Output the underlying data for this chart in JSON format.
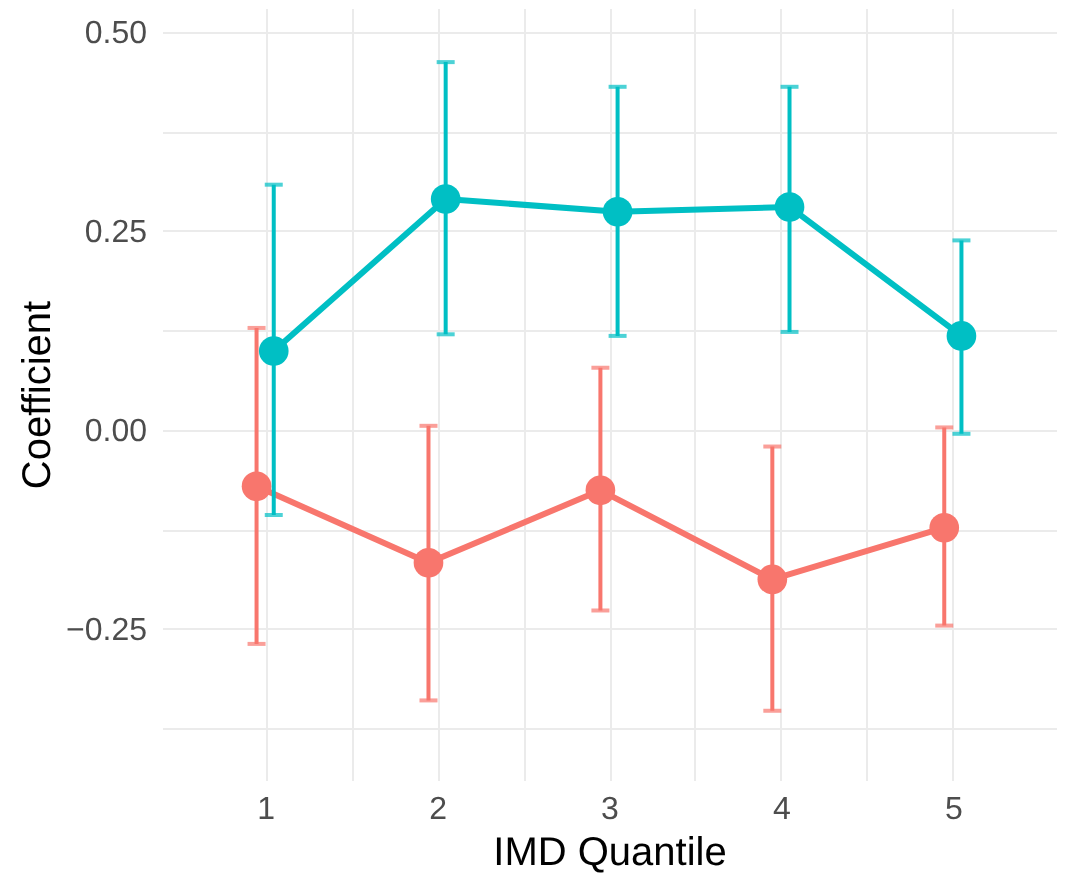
{
  "chart_data": {
    "type": "line",
    "xlabel": "IMD Quantile",
    "ylabel": "Coefficient",
    "xlim": [
      0.4,
      5.6
    ],
    "ylim": [
      -0.44,
      0.53
    ],
    "xticks": [
      1,
      {
        "value": 1.5,
        "label": null
      },
      2,
      {
        "value": 2.5,
        "label": null
      },
      3,
      {
        "value": 3.5,
        "label": null
      },
      4,
      {
        "value": 4.5,
        "label": null
      },
      5
    ],
    "yticks": [
      {
        "value": -0.375,
        "label": null
      },
      {
        "value": -0.25,
        "label": "−0.25"
      },
      {
        "value": -0.125,
        "label": null
      },
      {
        "value": 0,
        "label": "0.00"
      },
      {
        "value": 0.125,
        "label": null
      },
      {
        "value": 0.25,
        "label": "0.25"
      },
      {
        "value": 0.375,
        "label": null
      },
      {
        "value": 0.5,
        "label": "0.50"
      }
    ],
    "grid": true,
    "marker": "circle",
    "line_style": "solid",
    "series": [
      {
        "color": "#f8766d",
        "x": [
          0.95,
          1.95,
          2.95,
          3.95,
          4.95
        ],
        "values": [
          -0.071,
          -0.167,
          -0.076,
          -0.188,
          -0.123
        ],
        "errors": [
          [
            -0.269,
            0.128
          ],
          [
            -0.34,
            0.005
          ],
          [
            -0.227,
            0.078
          ],
          [
            -0.353,
            -0.021
          ],
          [
            -0.246,
            0.003
          ]
        ]
      },
      {
        "color": "#00bfc4",
        "x": [
          1.05,
          2.05,
          3.05,
          4.05,
          5.05
        ],
        "values": [
          0.099,
          0.29,
          0.274,
          0.28,
          0.118
        ],
        "errors": [
          [
            -0.107,
            0.308
          ],
          [
            0.12,
            0.462
          ],
          [
            0.118,
            0.431
          ],
          [
            0.123,
            0.431
          ],
          [
            -0.005,
            0.238
          ]
        ]
      }
    ]
  }
}
